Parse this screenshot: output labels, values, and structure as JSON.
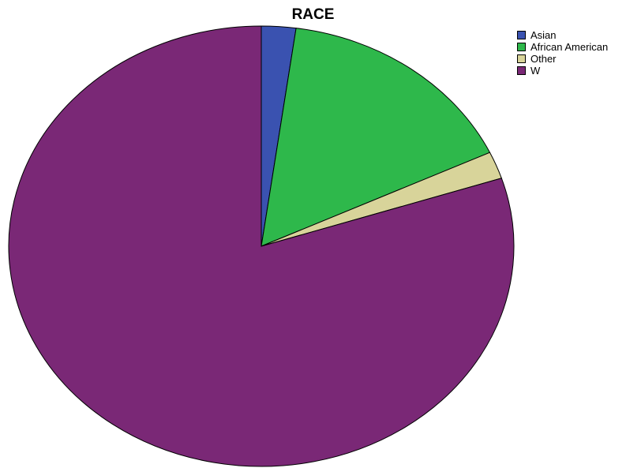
{
  "chart_data": {
    "type": "pie",
    "title": "RACE",
    "legend_position": "top-right",
    "slices": [
      {
        "label": "Asian",
        "value": 2.2,
        "color": "#3a52b0"
      },
      {
        "label": "African American",
        "value": 15.8,
        "color": "#2eb84b"
      },
      {
        "label": "Other",
        "value": 2.0,
        "color": "#d8d49a"
      },
      {
        "label": "W",
        "value": 80.0,
        "color": "#7a2876"
      }
    ]
  }
}
